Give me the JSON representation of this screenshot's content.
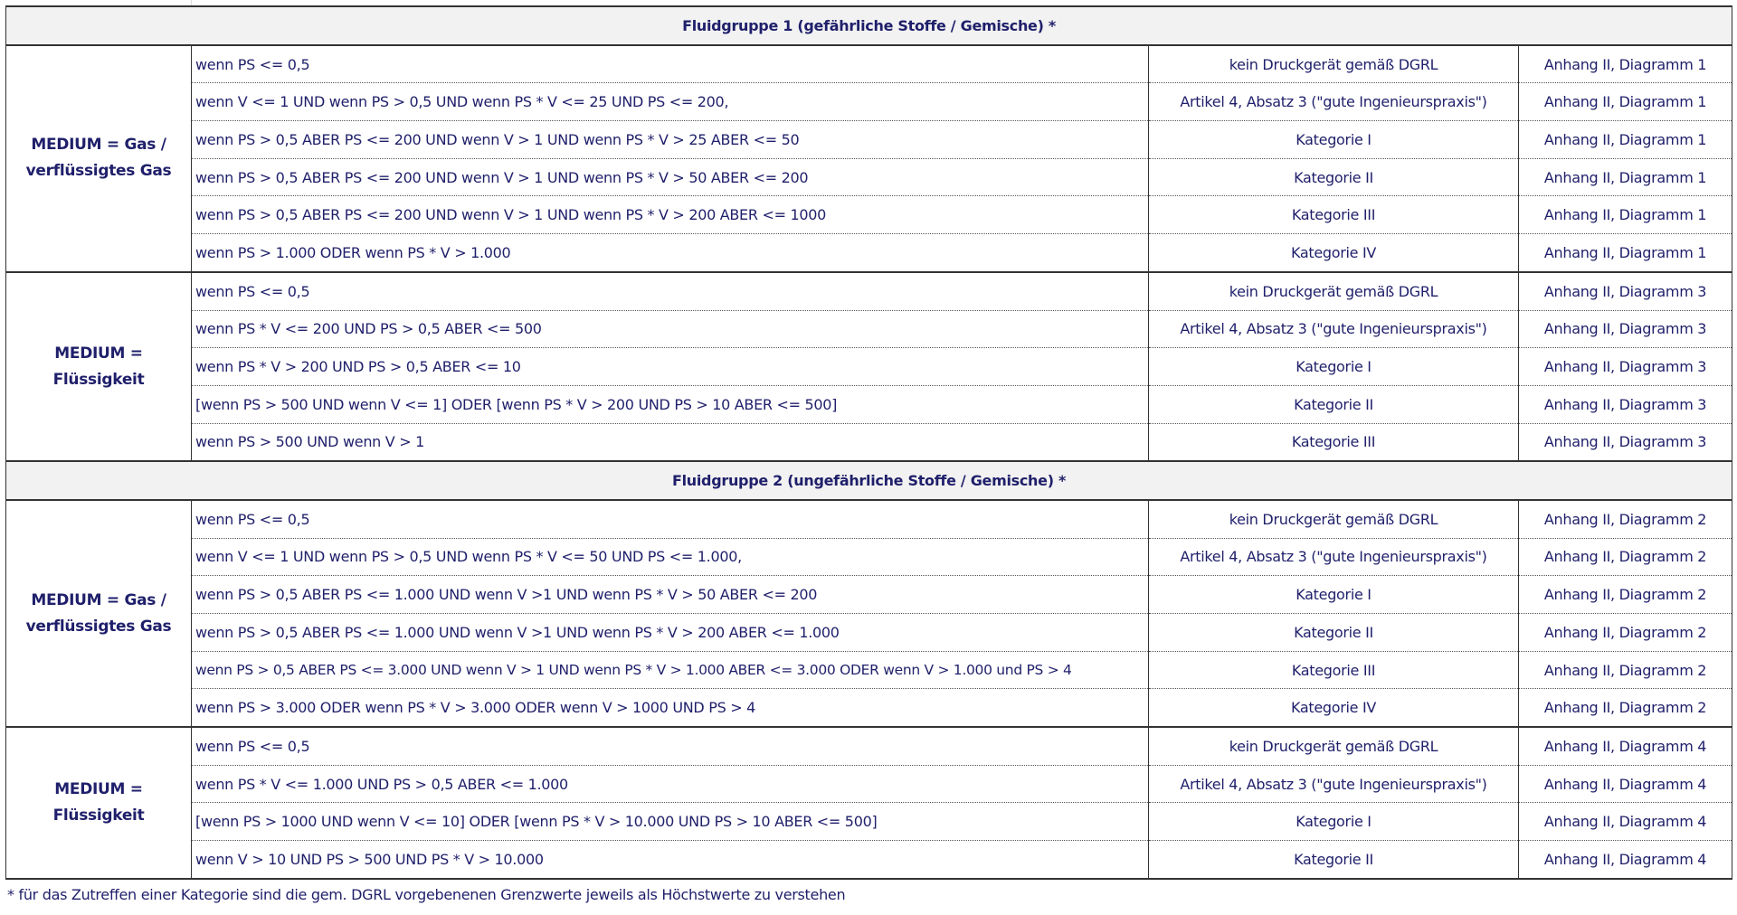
{
  "sections": [
    {
      "title": "Fluidgruppe 1 (gefährliche Stoffe / Gemische) *",
      "groups": [
        {
          "label": "MEDIUM = Gas / verflüssigtes Gas",
          "rows": [
            [
              "wenn PS <=  0,5",
              "kein Druckgerät gemäß DGRL",
              "Anhang II, Diagramm 1"
            ],
            [
              "wenn V <= 1 UND wenn PS > 0,5 UND wenn PS * V <= 25 UND PS <= 200,",
              "Artikel 4, Absatz 3 (\"gute Ingenieurspraxis\")",
              "Anhang II, Diagramm 1"
            ],
            [
              "wenn PS > 0,5 ABER PS <= 200 UND wenn V > 1 UND wenn PS * V > 25 ABER <= 50",
              "Kategorie I",
              "Anhang II, Diagramm 1"
            ],
            [
              "wenn PS > 0,5 ABER PS <= 200 UND wenn V > 1 UND wenn PS * V > 50 ABER <= 200",
              "Kategorie II",
              "Anhang II, Diagramm 1"
            ],
            [
              "wenn PS > 0,5 ABER PS <= 200 UND wenn V > 1 UND wenn PS * V > 200 ABER <= 1000",
              "Kategorie III",
              "Anhang II, Diagramm 1"
            ],
            [
              "wenn PS > 1.000 ODER wenn PS * V > 1.000",
              "Kategorie IV",
              "Anhang II, Diagramm 1"
            ]
          ]
        },
        {
          "label": "MEDIUM = Flüssigkeit",
          "rows": [
            [
              "wenn PS <=  0,5",
              "kein Druckgerät gemäß DGRL",
              "Anhang II, Diagramm 3"
            ],
            [
              "wenn PS * V <= 200 UND PS > 0,5 ABER <= 500",
              "Artikel 4, Absatz 3 (\"gute Ingenieurspraxis\")",
              "Anhang II, Diagramm 3"
            ],
            [
              "wenn PS * V > 200 UND PS > 0,5 ABER <= 10",
              "Kategorie I",
              "Anhang II, Diagramm 3"
            ],
            [
              "[wenn PS > 500 UND wenn V <= 1] ODER [wenn PS * V > 200 UND PS > 10 ABER <= 500]",
              "Kategorie II",
              "Anhang II, Diagramm 3"
            ],
            [
              "wenn PS > 500 UND wenn V > 1",
              "Kategorie III",
              "Anhang II, Diagramm 3"
            ]
          ]
        }
      ]
    },
    {
      "title": "Fluidgruppe 2 (ungefährliche Stoffe / Gemische) *",
      "groups": [
        {
          "label": "MEDIUM = Gas / verflüssigtes Gas",
          "rows": [
            [
              "wenn PS <=  0,5",
              "kein Druckgerät gemäß DGRL",
              "Anhang II, Diagramm 2"
            ],
            [
              "wenn V <= 1 UND wenn PS > 0,5 UND wenn PS * V <= 50 UND PS <= 1.000,",
              "Artikel 4, Absatz 3 (\"gute Ingenieurspraxis\")",
              "Anhang II, Diagramm 2"
            ],
            [
              "wenn PS > 0,5 ABER PS <= 1.000 UND wenn V >1 UND wenn PS * V > 50 ABER <= 200",
              "Kategorie I",
              "Anhang II, Diagramm 2"
            ],
            [
              "wenn PS > 0,5 ABER PS <= 1.000 UND wenn V >1 UND wenn PS * V > 200 ABER <= 1.000",
              "Kategorie II",
              "Anhang II, Diagramm 2"
            ],
            [
              "wenn PS > 0,5 ABER PS <= 3.000 UND wenn V > 1 UND wenn PS * V > 1.000 ABER <= 3.000 ODER wenn V > 1.000 und PS > 4",
              "Kategorie III",
              "Anhang II, Diagramm 2"
            ],
            [
              "wenn PS > 3.000 ODER wenn PS * V > 3.000 ODER wenn V > 1000 UND PS > 4",
              "Kategorie IV",
              "Anhang II, Diagramm 2"
            ]
          ]
        },
        {
          "label": "MEDIUM = Flüssigkeit",
          "rows": [
            [
              "wenn PS <=  0,5",
              "kein Druckgerät gemäß DGRL",
              "Anhang II, Diagramm 4"
            ],
            [
              "wenn PS * V <= 1.000 UND PS > 0,5 ABER <= 1.000",
              "Artikel 4, Absatz 3 (\"gute Ingenieurspraxis\")",
              "Anhang II, Diagramm 4"
            ],
            [
              "[wenn PS > 1000 UND wenn V <= 10] ODER [wenn PS * V > 10.000 UND PS > 10 ABER <= 500]",
              "Kategorie I",
              "Anhang II, Diagramm 4"
            ],
            [
              "wenn V > 10 UND PS > 500 UND PS * V > 10.000",
              "Kategorie II",
              "Anhang II, Diagramm 4"
            ]
          ]
        }
      ]
    }
  ],
  "footnote": "* für das Zutreffen einer Kategorie sind die gem. DGRL vorgebenenen Grenzwerte jeweils als Höchstwerte zu verstehen"
}
